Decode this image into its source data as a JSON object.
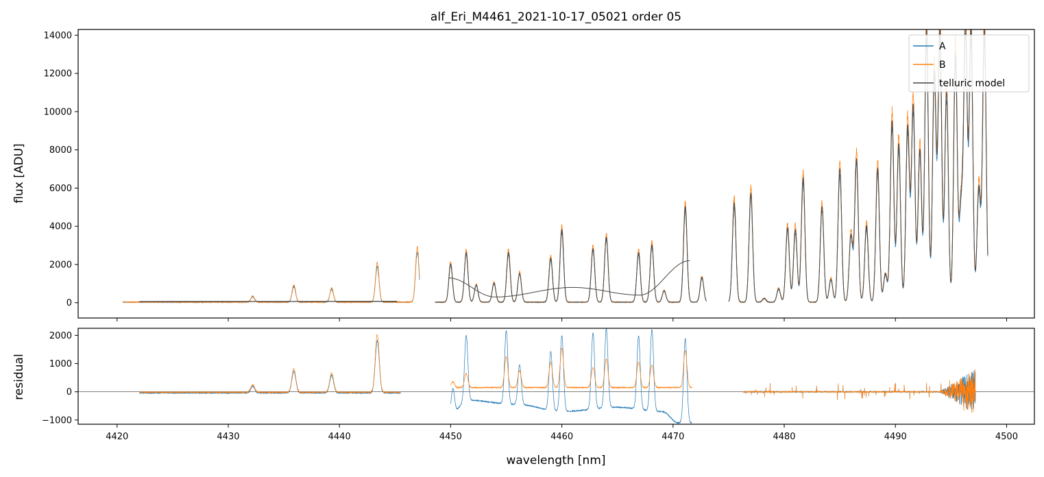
{
  "chart_data": [
    {
      "type": "line",
      "title": "alf_Eri_M4461_2021-10-17_05021  order 05",
      "xlabel": "",
      "ylabel": "flux [ADU]",
      "xlim": [
        4416.5,
        4502.5
      ],
      "ylim": [
        -800,
        14300
      ],
      "x_ticks": [
        4420,
        4430,
        4440,
        4450,
        4460,
        4470,
        4480,
        4490,
        4500
      ],
      "y_ticks": [
        0,
        2000,
        4000,
        6000,
        8000,
        10000,
        12000,
        14000
      ],
      "y_tick_labels": [
        "0",
        "2000",
        "4000",
        "6000",
        "8000",
        "10000",
        "12000",
        "14000"
      ],
      "legend_position": "top-right",
      "series": [
        {
          "name": "A",
          "color": "#1f77b4"
        },
        {
          "name": "B",
          "color": "#ff7f0e"
        },
        {
          "name": "telluric model",
          "color": "#444444"
        }
      ],
      "segments": [
        {
          "range": [
            4420.5,
            4447.2
          ],
          "base": 30,
          "telluric_continuum": [
            60,
            70
          ],
          "lines": [
            [
              4432.2,
              300
            ],
            [
              4435.9,
              850
            ],
            [
              4439.3,
              700
            ],
            [
              4443.4,
              1950
            ],
            [
              4447.0,
              2700
            ]
          ]
        },
        {
          "range": [
            4448.6,
            4473.0
          ],
          "base": 30,
          "telluric_continuum_poly": [
            [
              4449.8,
              1300
            ],
            [
              4454.0,
              300
            ],
            [
              4461.0,
              800
            ],
            [
              4467.0,
              400
            ],
            [
              4471.5,
              2200
            ]
          ],
          "lines": [
            [
              4450.0,
              2000
            ],
            [
              4451.4,
              2600
            ],
            [
              4452.3,
              900
            ],
            [
              4453.9,
              1000
            ],
            [
              4455.2,
              2600
            ],
            [
              4456.2,
              1500
            ],
            [
              4459.0,
              2300
            ],
            [
              4460.0,
              3800
            ],
            [
              4462.8,
              2800
            ],
            [
              4464.0,
              3400
            ],
            [
              4466.9,
              2600
            ],
            [
              4468.1,
              3000
            ],
            [
              4469.2,
              600
            ],
            [
              4471.1,
              5000
            ],
            [
              4472.6,
              1300
            ]
          ]
        },
        {
          "range": [
            4475.0,
            4498.3
          ],
          "base": 30,
          "lines": [
            [
              4475.5,
              5200
            ],
            [
              4477.0,
              5700
            ],
            [
              4478.2,
              200
            ],
            [
              4479.5,
              700
            ],
            [
              4480.3,
              3900
            ],
            [
              4481.0,
              3800
            ],
            [
              4481.7,
              6500
            ],
            [
              4483.4,
              5000
            ],
            [
              4484.2,
              1200
            ],
            [
              4485.0,
              7000
            ],
            [
              4486.0,
              3500
            ],
            [
              4486.5,
              7500
            ],
            [
              4487.4,
              4000
            ],
            [
              4488.4,
              7000
            ],
            [
              4489.1,
              1500
            ],
            [
              4489.7,
              9500
            ],
            [
              4490.3,
              8300
            ],
            [
              4491.1,
              9200
            ],
            [
              4491.6,
              10300
            ],
            [
              4492.2,
              8000
            ],
            [
              4492.8,
              14300
            ],
            [
              4493.5,
              12000
            ],
            [
              4494.0,
              14300
            ],
            [
              4494.6,
              11000
            ],
            [
              4495.4,
              13000
            ],
            [
              4495.9,
              5000
            ],
            [
              4496.3,
              14300
            ],
            [
              4496.8,
              14300
            ],
            [
              4497.5,
              6000
            ],
            [
              4498.0,
              14300
            ]
          ]
        }
      ]
    },
    {
      "type": "line",
      "xlabel": "wavelength [nm]",
      "ylabel": "residual",
      "xlim": [
        4416.5,
        4502.5
      ],
      "ylim": [
        -1150,
        2250
      ],
      "x_ticks": [
        4420,
        4430,
        4440,
        4450,
        4460,
        4470,
        4480,
        4490,
        4500
      ],
      "x_tick_labels": [
        "4420",
        "4430",
        "4440",
        "4450",
        "4460",
        "4470",
        "4480",
        "4490",
        "4500"
      ],
      "y_ticks": [
        -1000,
        0,
        1000,
        2000
      ],
      "y_tick_labels": [
        "−1000",
        "0",
        "1000",
        "2000"
      ],
      "zero_line": true,
      "series": [
        {
          "name": "A",
          "color": "#1f77b4"
        },
        {
          "name": "B",
          "color": "#ff7f0e"
        }
      ],
      "segments": [
        {
          "range": [
            4422.0,
            4445.5
          ],
          "offsetA": -40,
          "offsetB": -20,
          "lines": [
            [
              4432.2,
              250
            ],
            [
              4435.9,
              800
            ],
            [
              4439.3,
              650
            ],
            [
              4443.4,
              1950
            ]
          ]
        },
        {
          "range": [
            4450.0,
            4471.7
          ],
          "offsetA_curve": [
            [
              4450.0,
              -800
            ],
            [
              4451.5,
              -300
            ],
            [
              4456.0,
              -450
            ],
            [
              4460.0,
              -700
            ],
            [
              4465.0,
              -550
            ],
            [
              4469.0,
              -700
            ],
            [
              4470.5,
              -1100
            ]
          ],
          "offsetB": 150,
          "linesA": [
            [
              4450.2,
              900
            ],
            [
              4451.4,
              2300
            ],
            [
              4455.0,
              2600
            ],
            [
              4456.2,
              1400
            ],
            [
              4459.0,
              2100
            ],
            [
              4460.0,
              2700
            ],
            [
              4462.8,
              2700
            ],
            [
              4464.0,
              2800
            ],
            [
              4466.9,
              2600
            ],
            [
              4468.1,
              2900
            ],
            [
              4471.1,
              3000
            ]
          ],
          "linesB": [
            [
              4450.2,
              200
            ],
            [
              4451.4,
              500
            ],
            [
              4455.0,
              1100
            ],
            [
              4456.2,
              600
            ],
            [
              4459.0,
              900
            ],
            [
              4460.0,
              1400
            ],
            [
              4462.8,
              700
            ],
            [
              4464.0,
              1000
            ],
            [
              4466.9,
              900
            ],
            [
              4468.1,
              800
            ],
            [
              4471.1,
              1300
            ]
          ]
        },
        {
          "range": [
            4476.3,
            4497.2
          ],
          "offsetA": 0,
          "offsetB": 0,
          "noisy_tail": [
            4494.0,
            4497.2
          ]
        }
      ]
    }
  ]
}
